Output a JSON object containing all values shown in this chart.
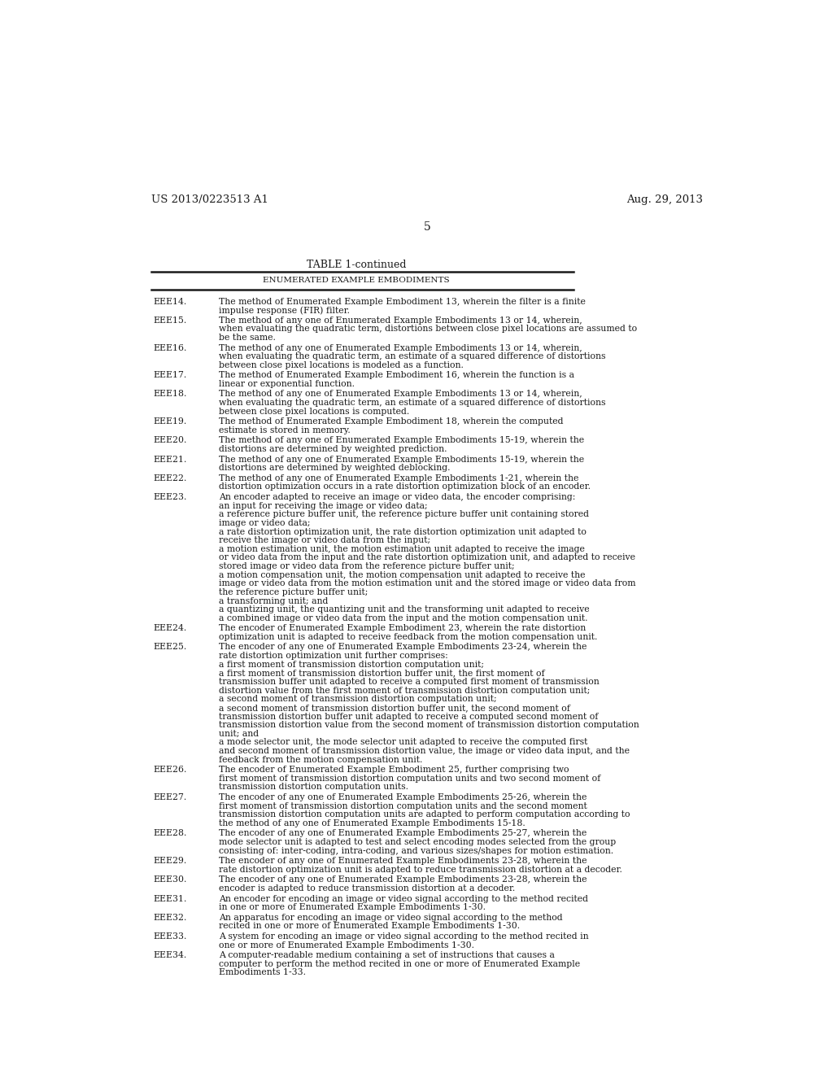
{
  "background_color": "#ffffff",
  "header_left": "US 2013/0223513 A1",
  "header_right": "Aug. 29, 2013",
  "page_number": "5",
  "table_title": "TABLE 1-continued",
  "table_subtitle": "ENUMERATED EXAMPLE EMBODIMENTS",
  "entries": [
    {
      "id": "EEE14.",
      "text": "The method of Enumerated Example Embodiment 13, wherein the filter is a finite\nimpulse response (FIR) filter."
    },
    {
      "id": "EEE15.",
      "text": "The method of any one of Enumerated Example Embodiments 13 or 14, wherein,\nwhen evaluating the quadratic term, distortions between close pixel locations are assumed to\nbe the same."
    },
    {
      "id": "EEE16.",
      "text": "The method of any one of Enumerated Example Embodiments 13 or 14, wherein,\nwhen evaluating the quadratic term, an estimate of a squared difference of distortions\nbetween close pixel locations is modeled as a function."
    },
    {
      "id": "EEE17.",
      "text": "The method of Enumerated Example Embodiment 16, wherein the function is a\nlinear or exponential function."
    },
    {
      "id": "EEE18.",
      "text": "The method of any one of Enumerated Example Embodiments 13 or 14, wherein,\nwhen evaluating the quadratic term, an estimate of a squared difference of distortions\nbetween close pixel locations is computed."
    },
    {
      "id": "EEE19.",
      "text": "The method of Enumerated Example Embodiment 18, wherein the computed\nestimate is stored in memory."
    },
    {
      "id": "EEE20.",
      "text": "The method of any one of Enumerated Example Embodiments 15-19, wherein the\ndistortions are determined by weighted prediction."
    },
    {
      "id": "EEE21.",
      "text": "The method of any one of Enumerated Example Embodiments 15-19, wherein the\ndistortions are determined by weighted deblocking."
    },
    {
      "id": "EEE22.",
      "text": "The method of any one of Enumerated Example Embodiments 1-21, wherein the\ndistortion optimization occurs in a rate distortion optimization block of an encoder."
    },
    {
      "id": "EEE23.",
      "text": "An encoder adapted to receive an image or video data, the encoder comprising:\nan input for receiving the image or video data;\na reference picture buffer unit, the reference picture buffer unit containing stored\nimage or video data;\na rate distortion optimization unit, the rate distortion optimization unit adapted to\nreceive the image or video data from the input;\na motion estimation unit, the motion estimation unit adapted to receive the image\nor video data from the input and the rate distortion optimization unit, and adapted to receive\nstored image or video data from the reference picture buffer unit;\na motion compensation unit, the motion compensation unit adapted to receive the\nimage or video data from the motion estimation unit and the stored image or video data from\nthe reference picture buffer unit;\na transforming unit; and\na quantizing unit, the quantizing unit and the transforming unit adapted to receive\na combined image or video data from the input and the motion compensation unit."
    },
    {
      "id": "EEE24.",
      "text": "The encoder of Enumerated Example Embodiment 23, wherein the rate distortion\noptimization unit is adapted to receive feedback from the motion compensation unit."
    },
    {
      "id": "EEE25.",
      "text": "The encoder of any one of Enumerated Example Embodiments 23-24, wherein the\nrate distortion optimization unit further comprises:\na first moment of transmission distortion computation unit;\na first moment of transmission distortion buffer unit, the first moment of\ntransmission buffer unit adapted to receive a computed first moment of transmission\ndistortion value from the first moment of transmission distortion computation unit;\na second moment of transmission distortion computation unit;\na second moment of transmission distortion buffer unit, the second moment of\ntransmission distortion buffer unit adapted to receive a computed second moment of\ntransmission distortion value from the second moment of transmission distortion computation\nunit; and\na mode selector unit, the mode selector unit adapted to receive the computed first\nand second moment of transmission distortion value, the image or video data input, and the\nfeedback from the motion compensation unit."
    },
    {
      "id": "EEE26.",
      "text": "The encoder of Enumerated Example Embodiment 25, further comprising two\nfirst moment of transmission distortion computation units and two second moment of\ntransmission distortion computation units."
    },
    {
      "id": "EEE27.",
      "text": "The encoder of any one of Enumerated Example Embodiments 25-26, wherein the\nfirst moment of transmission distortion computation units and the second moment\ntransmission distortion computation units are adapted to perform computation according to\nthe method of any one of Enumerated Example Embodiments 15-18."
    },
    {
      "id": "EEE28.",
      "text": "The encoder of any one of Enumerated Example Embodiments 25-27, wherein the\nmode selector unit is adapted to test and select encoding modes selected from the group\nconsisting of: inter-coding, intra-coding, and various sizes/shapes for motion estimation."
    },
    {
      "id": "EEE29.",
      "text": "The encoder of any one of Enumerated Example Embodiments 23-28, wherein the\nrate distortion optimization unit is adapted to reduce transmission distortion at a decoder."
    },
    {
      "id": "EEE30.",
      "text": "The encoder of any one of Enumerated Example Embodiments 23-28, wherein the\nencoder is adapted to reduce transmission distortion at a decoder."
    },
    {
      "id": "EEE31.",
      "text": "An encoder for encoding an image or video signal according to the method recited\nin one or more of Enumerated Example Embodiments 1-30."
    },
    {
      "id": "EEE32.",
      "text": "An apparatus for encoding an image or video signal according to the method\nrecited in one or more of Enumerated Example Embodiments 1-30."
    },
    {
      "id": "EEE33.",
      "text": "A system for encoding an image or video signal according to the method recited in\none or more of Enumerated Example Embodiments 1-30."
    },
    {
      "id": "EEE34.",
      "text": "A computer-readable medium containing a set of instructions that causes a\ncomputer to perform the method recited in one or more of Enumerated Example\nEmbodiments 1-33."
    }
  ]
}
